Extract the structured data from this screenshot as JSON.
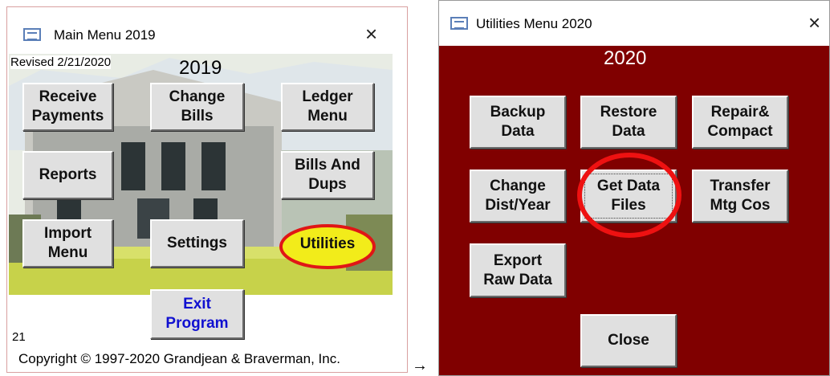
{
  "left_window": {
    "title": "Main Menu 2019",
    "close": "×",
    "revised": "Revised 2/21/2020",
    "year": "2019",
    "buttons": [
      {
        "lines": [
          "Receive",
          "Payments"
        ]
      },
      {
        "lines": [
          "Change",
          "Bills"
        ]
      },
      {
        "lines": [
          "Ledger",
          "Menu"
        ]
      },
      {
        "lines": [
          "Reports"
        ]
      },
      {
        "lines": [
          "Bills And",
          "Dups"
        ]
      },
      {
        "lines": [
          "Import",
          "Menu"
        ]
      },
      {
        "lines": [
          "Settings"
        ]
      },
      {
        "lines": [
          "Utilities"
        ]
      },
      {
        "lines": [
          "Exit",
          "Program"
        ]
      }
    ],
    "number": "21",
    "copyright": "Copyright © 1997-2020 Grandjean & Braverman, Inc."
  },
  "arrow": "→",
  "right_window": {
    "title": "Utilities Menu 2020",
    "close": "×",
    "year": "2020",
    "buttons": [
      {
        "lines": [
          "Backup",
          "Data"
        ]
      },
      {
        "lines": [
          "Restore",
          "Data"
        ]
      },
      {
        "lines": [
          "Repair&",
          "Compact"
        ]
      },
      {
        "lines": [
          "Change",
          "Dist/Year"
        ]
      },
      {
        "lines": [
          "Get Data",
          "Files"
        ]
      },
      {
        "lines": [
          "Transfer",
          "Mtg Cos"
        ]
      },
      {
        "lines": [
          "Export",
          "Raw Data"
        ]
      },
      {
        "lines": [
          "Close"
        ]
      }
    ]
  }
}
